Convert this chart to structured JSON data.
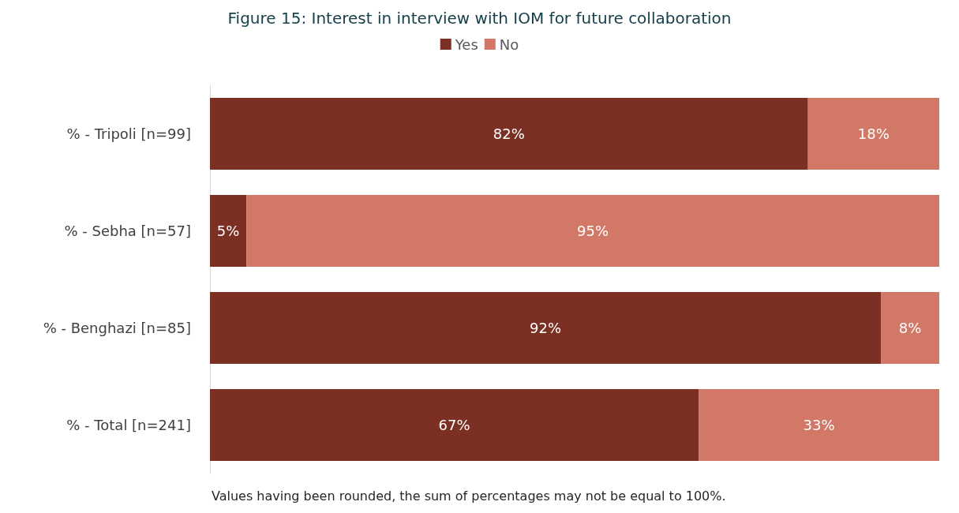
{
  "chart_data": {
    "type": "bar",
    "orientation": "horizontal",
    "stacked": true,
    "title": "Figure 15: Interest in interview with IOM for future collaboration",
    "categories": [
      "% - Tripoli [n=99]",
      "% - Sebha [n=57]",
      "% - Benghazi [n=85]",
      "% - Total [n=241]"
    ],
    "series": [
      {
        "name": "Yes",
        "color": "#7b3023",
        "values": [
          82,
          5,
          92,
          67
        ],
        "value_labels": [
          "82%",
          "5%",
          "92%",
          "67%"
        ]
      },
      {
        "name": "No",
        "color": "#d27867",
        "values": [
          18,
          95,
          8,
          33
        ],
        "value_labels": [
          "18%",
          "95%",
          "8%",
          "33%"
        ]
      }
    ],
    "legend": "top",
    "annotations": [
      "Values having been rounded, the sum of percentages may not be equal to 100%."
    ]
  }
}
